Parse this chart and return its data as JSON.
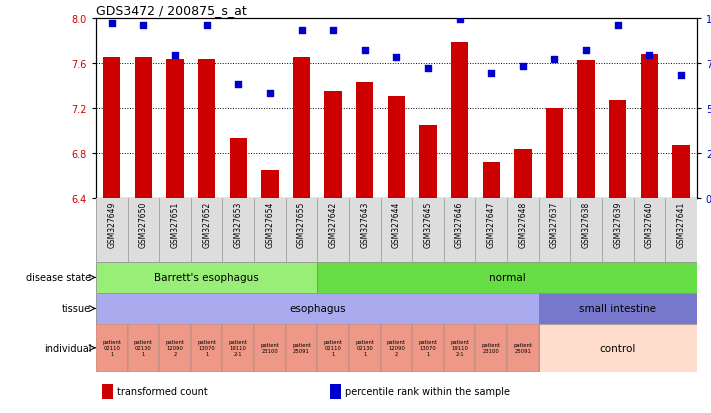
{
  "title": "GDS3472 / 200875_s_at",
  "samples": [
    "GSM327649",
    "GSM327650",
    "GSM327651",
    "GSM327652",
    "GSM327653",
    "GSM327654",
    "GSM327655",
    "GSM327642",
    "GSM327643",
    "GSM327644",
    "GSM327645",
    "GSM327646",
    "GSM327647",
    "GSM327648",
    "GSM327637",
    "GSM327638",
    "GSM327639",
    "GSM327640",
    "GSM327641"
  ],
  "bar_values": [
    7.65,
    7.65,
    7.63,
    7.63,
    6.93,
    6.65,
    7.65,
    7.35,
    7.43,
    7.3,
    7.05,
    7.78,
    6.72,
    6.83,
    7.2,
    7.62,
    7.27,
    7.68,
    6.87
  ],
  "dot_values": [
    97,
    96,
    79,
    96,
    63,
    58,
    93,
    93,
    82,
    78,
    72,
    99,
    69,
    73,
    77,
    82,
    96,
    79,
    68
  ],
  "ylim_left": [
    6.4,
    8.0
  ],
  "ylim_right": [
    0,
    100
  ],
  "yticks_left": [
    6.4,
    6.8,
    7.2,
    7.6,
    8.0
  ],
  "yticks_right": [
    0,
    25,
    50,
    75,
    100
  ],
  "bar_color": "#cc0000",
  "dot_color": "#0000cc",
  "disease_state_labels": [
    {
      "label": "Barrett's esophagus",
      "start": 0,
      "end": 6,
      "color": "#99ee77"
    },
    {
      "label": "normal",
      "start": 7,
      "end": 18,
      "color": "#66dd44"
    }
  ],
  "tissue_labels": [
    {
      "label": "esophagus",
      "start": 0,
      "end": 13,
      "color": "#aaaaee"
    },
    {
      "label": "small intestine",
      "start": 14,
      "end": 18,
      "color": "#7777cc"
    }
  ],
  "indiv_per_sample": [
    "patient\n02110\n1",
    "patient\n02130\n1",
    "patient\n12090\n2",
    "patient\n13070\n1",
    "patient\n19110\n2-1",
    "patient\n23100",
    "patient\n25091",
    "patient\n02110\n1",
    "patient\n02130\n1",
    "patient\n12090\n2",
    "patient\n13070\n1",
    "patient\n19110\n2-1",
    "patient\n23100",
    "patient\n25091"
  ],
  "indiv_color": "#ee9988",
  "control_color": "#ffddcc",
  "row_labels": [
    "disease state",
    "tissue",
    "individual"
  ],
  "legend_items": [
    {
      "color": "#cc0000",
      "label": "transformed count"
    },
    {
      "color": "#0000cc",
      "label": "percentile rank within the sample"
    }
  ]
}
